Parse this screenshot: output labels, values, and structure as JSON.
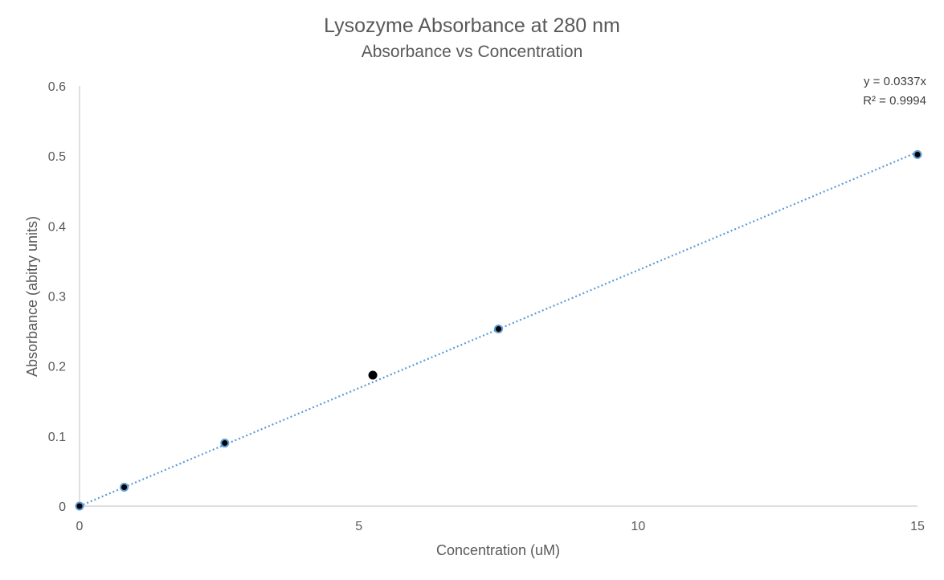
{
  "chart_data": {
    "type": "scatter",
    "title": "Lysozyme Absorbance at 280 nm",
    "subtitle": "Absorbance vs Concentration",
    "xlabel": "Concentration (uM)",
    "ylabel": "Absorbance (abitry units)",
    "xlim": [
      0,
      15
    ],
    "ylim": [
      0,
      0.6
    ],
    "x_ticks": [
      0,
      5,
      10,
      15
    ],
    "x_tick_labels": [
      "0",
      "5",
      "10",
      "15"
    ],
    "y_ticks": [
      0,
      0.1,
      0.2,
      0.3,
      0.4,
      0.5,
      0.6
    ],
    "y_tick_labels": [
      "0",
      "0.1",
      "0.2",
      "0.3",
      "0.4",
      "0.5",
      "0.6"
    ],
    "grid": false,
    "series": [
      {
        "points": [
          {
            "x": 0,
            "y": 0
          },
          {
            "x": 0.8,
            "y": 0.027
          },
          {
            "x": 2.6,
            "y": 0.09
          },
          {
            "x": 7.5,
            "y": 0.253
          },
          {
            "x": 15,
            "y": 0.502
          }
        ],
        "color": "#5b9bd5"
      },
      {
        "points": [
          {
            "x": 5.25,
            "y": 0.187
          }
        ],
        "color": "#000000"
      }
    ],
    "trendline": {
      "type": "linear",
      "slope": 0.0337,
      "intercept": 0,
      "x_range": [
        0,
        15
      ],
      "color": "#5b9bd5",
      "style": "dotted",
      "equation": "y = 0.0337x",
      "r_squared": "R² = 0.9994"
    }
  }
}
